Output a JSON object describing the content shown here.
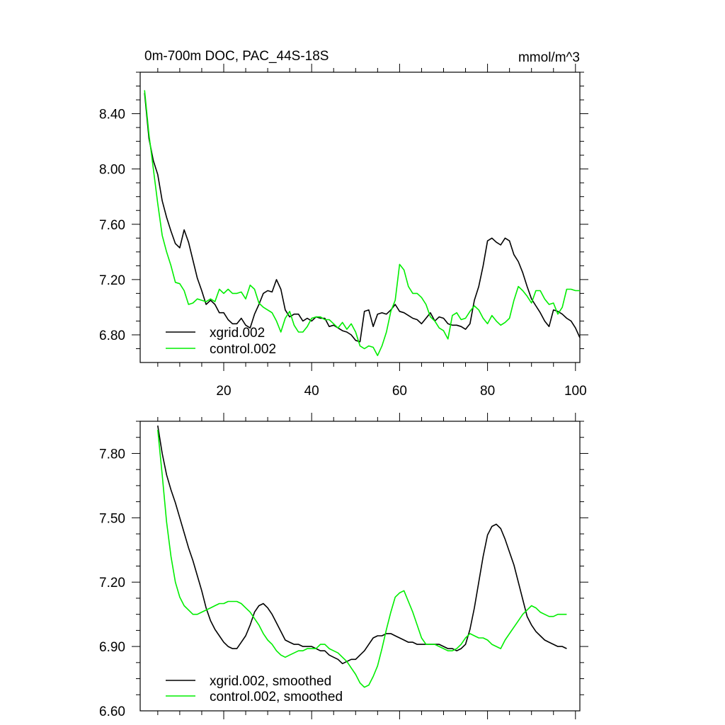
{
  "chart_data": [
    {
      "type": "line",
      "title": "0m-700m DOC, PAC_44S-18S",
      "units": "mmol/m^3",
      "xlabel": "",
      "ylabel": "",
      "xlim": [
        1,
        101
      ],
      "ylim": [
        6.6,
        8.7
      ],
      "xticks": [
        20,
        40,
        60,
        80,
        100
      ],
      "yticks": [
        6.8,
        7.2,
        7.6,
        8.0,
        8.4
      ],
      "ytick_labels": [
        "6.80",
        "7.20",
        "7.60",
        "8.00",
        "8.40"
      ],
      "legend_position": "bottom-left",
      "series": [
        {
          "name": "xgrid.002",
          "color": "#000000",
          "x": [
            2,
            3,
            4,
            5,
            6,
            7,
            8,
            9,
            10,
            11,
            12,
            13,
            14,
            15,
            16,
            17,
            18,
            19,
            20,
            21,
            22,
            23,
            24,
            25,
            26,
            27,
            28,
            29,
            30,
            31,
            32,
            33,
            34,
            35,
            36,
            37,
            38,
            39,
            40,
            41,
            42,
            43,
            44,
            45,
            46,
            47,
            48,
            49,
            50,
            51,
            52,
            53,
            54,
            55,
            56,
            57,
            58,
            59,
            60,
            61,
            62,
            63,
            64,
            65,
            66,
            67,
            68,
            69,
            70,
            71,
            72,
            73,
            74,
            75,
            76,
            77,
            78,
            79,
            80,
            81,
            82,
            83,
            84,
            85,
            86,
            87,
            88,
            89,
            90,
            91,
            92,
            93,
            94,
            95,
            96,
            97,
            98,
            99,
            100,
            101
          ],
          "values": [
            8.55,
            8.22,
            8.06,
            7.96,
            7.77,
            7.65,
            7.55,
            7.46,
            7.43,
            7.56,
            7.47,
            7.34,
            7.21,
            7.12,
            7.02,
            7.05,
            7.02,
            6.96,
            6.96,
            6.91,
            6.88,
            6.88,
            6.92,
            6.87,
            6.85,
            6.95,
            7.02,
            7.1,
            7.12,
            7.11,
            7.2,
            7.13,
            6.98,
            6.93,
            6.95,
            6.95,
            6.9,
            6.92,
            6.9,
            6.93,
            6.92,
            6.92,
            6.86,
            6.87,
            6.85,
            6.83,
            6.82,
            6.8,
            6.76,
            6.75,
            6.97,
            6.98,
            6.86,
            6.95,
            6.96,
            6.95,
            6.98,
            7.02,
            6.97,
            6.96,
            6.94,
            6.92,
            6.91,
            6.88,
            6.92,
            6.96,
            6.9,
            6.93,
            6.92,
            6.88,
            6.87,
            6.87,
            6.86,
            6.84,
            6.88,
            7.05,
            7.15,
            7.3,
            7.48,
            7.5,
            7.47,
            7.45,
            7.5,
            7.48,
            7.38,
            7.33,
            7.25,
            7.15,
            7.06,
            7.01,
            6.96,
            6.9,
            6.86,
            6.98,
            6.97,
            6.95,
            6.92,
            6.9,
            6.85,
            6.78
          ]
        },
        {
          "name": "control.002",
          "color": "#00ee00",
          "x": [
            2,
            3,
            4,
            5,
            6,
            7,
            8,
            9,
            10,
            11,
            12,
            13,
            14,
            15,
            16,
            17,
            18,
            19,
            20,
            21,
            22,
            23,
            24,
            25,
            26,
            27,
            28,
            29,
            30,
            31,
            32,
            33,
            34,
            35,
            36,
            37,
            38,
            39,
            40,
            41,
            42,
            43,
            44,
            45,
            46,
            47,
            48,
            49,
            50,
            51,
            52,
            53,
            54,
            55,
            56,
            57,
            58,
            59,
            60,
            61,
            62,
            63,
            64,
            65,
            66,
            67,
            68,
            69,
            70,
            71,
            72,
            73,
            74,
            75,
            76,
            77,
            78,
            79,
            80,
            81,
            82,
            83,
            84,
            85,
            86,
            87,
            88,
            89,
            90,
            91,
            92,
            93,
            94,
            95,
            96,
            97,
            98,
            99,
            100,
            101
          ],
          "values": [
            8.57,
            8.25,
            8.0,
            7.75,
            7.52,
            7.4,
            7.3,
            7.18,
            7.17,
            7.12,
            7.02,
            7.03,
            7.06,
            7.05,
            7.04,
            7.06,
            7.04,
            7.13,
            7.1,
            7.13,
            7.1,
            7.1,
            7.11,
            7.06,
            7.16,
            7.13,
            7.03,
            7.0,
            6.98,
            6.96,
            6.9,
            6.82,
            6.92,
            6.97,
            6.87,
            6.82,
            6.82,
            6.86,
            6.92,
            6.93,
            6.93,
            6.91,
            6.91,
            6.88,
            6.85,
            6.89,
            6.84,
            6.88,
            6.82,
            6.72,
            6.7,
            6.72,
            6.71,
            6.65,
            6.72,
            6.82,
            6.97,
            7.05,
            7.31,
            7.27,
            7.15,
            7.1,
            7.1,
            7.07,
            7.02,
            6.93,
            6.9,
            6.85,
            6.83,
            6.77,
            6.94,
            6.96,
            6.91,
            6.92,
            6.97,
            7.01,
            6.98,
            6.92,
            6.88,
            6.94,
            6.9,
            6.87,
            6.89,
            6.92,
            7.05,
            7.15,
            7.12,
            7.08,
            7.03,
            7.12,
            7.12,
            7.06,
            7.02,
            7.03,
            6.95,
            7.0,
            7.13,
            7.13,
            7.12,
            7.12
          ]
        }
      ]
    },
    {
      "type": "line",
      "title": "",
      "xlabel": "",
      "ylabel": "",
      "xlim": [
        1,
        101
      ],
      "ylim": [
        6.6,
        7.95
      ],
      "xticks": [
        20,
        40,
        60,
        80,
        100
      ],
      "yticks": [
        6.6,
        6.9,
        7.2,
        7.5,
        7.8
      ],
      "ytick_labels": [
        "6.60",
        "6.90",
        "7.20",
        "7.50",
        "7.80"
      ],
      "legend_position": "bottom-left",
      "series": [
        {
          "name": "xgrid.002, smoothed",
          "color": "#000000",
          "x": [
            5,
            6,
            7,
            8,
            9,
            10,
            11,
            12,
            13,
            14,
            15,
            16,
            17,
            18,
            19,
            20,
            21,
            22,
            23,
            24,
            25,
            26,
            27,
            28,
            29,
            30,
            31,
            32,
            33,
            34,
            35,
            36,
            37,
            38,
            39,
            40,
            41,
            42,
            43,
            44,
            45,
            46,
            47,
            48,
            49,
            50,
            51,
            52,
            53,
            54,
            55,
            56,
            57,
            58,
            59,
            60,
            61,
            62,
            63,
            64,
            65,
            66,
            67,
            68,
            69,
            70,
            71,
            72,
            73,
            74,
            75,
            76,
            77,
            78,
            79,
            80,
            81,
            82,
            83,
            84,
            85,
            86,
            87,
            88,
            89,
            90,
            91,
            92,
            93,
            94,
            95,
            96,
            97,
            98
          ],
          "values": [
            7.93,
            7.8,
            7.7,
            7.63,
            7.57,
            7.5,
            7.43,
            7.36,
            7.3,
            7.23,
            7.16,
            7.08,
            7.02,
            6.98,
            6.95,
            6.92,
            6.9,
            6.89,
            6.89,
            6.92,
            6.95,
            7.0,
            7.06,
            7.09,
            7.1,
            7.08,
            7.05,
            7.01,
            6.97,
            6.93,
            6.92,
            6.91,
            6.91,
            6.9,
            6.9,
            6.9,
            6.89,
            6.88,
            6.88,
            6.86,
            6.85,
            6.84,
            6.82,
            6.83,
            6.84,
            6.84,
            6.86,
            6.88,
            6.91,
            6.94,
            6.95,
            6.95,
            6.96,
            6.96,
            6.95,
            6.94,
            6.93,
            6.92,
            6.92,
            6.91,
            6.91,
            6.91,
            6.91,
            6.91,
            6.91,
            6.9,
            6.89,
            6.89,
            6.88,
            6.89,
            6.91,
            6.98,
            7.08,
            7.2,
            7.32,
            7.42,
            7.46,
            7.47,
            7.45,
            7.4,
            7.34,
            7.28,
            7.2,
            7.12,
            7.04,
            7.0,
            6.97,
            6.95,
            6.93,
            6.92,
            6.91,
            6.9,
            6.9,
            6.89
          ]
        },
        {
          "name": "control.002, smoothed",
          "color": "#00ee00",
          "x": [
            5,
            6,
            7,
            8,
            9,
            10,
            11,
            12,
            13,
            14,
            15,
            16,
            17,
            18,
            19,
            20,
            21,
            22,
            23,
            24,
            25,
            26,
            27,
            28,
            29,
            30,
            31,
            32,
            33,
            34,
            35,
            36,
            37,
            38,
            39,
            40,
            41,
            42,
            43,
            44,
            45,
            46,
            47,
            48,
            49,
            50,
            51,
            52,
            53,
            54,
            55,
            56,
            57,
            58,
            59,
            60,
            61,
            62,
            63,
            64,
            65,
            66,
            67,
            68,
            69,
            70,
            71,
            72,
            73,
            74,
            75,
            76,
            77,
            78,
            79,
            80,
            81,
            82,
            83,
            84,
            85,
            86,
            87,
            88,
            89,
            90,
            91,
            92,
            93,
            94,
            95,
            96,
            97,
            98
          ],
          "values": [
            7.91,
            7.7,
            7.48,
            7.32,
            7.2,
            7.13,
            7.09,
            7.07,
            7.05,
            7.05,
            7.06,
            7.07,
            7.08,
            7.09,
            7.1,
            7.1,
            7.11,
            7.11,
            7.11,
            7.1,
            7.08,
            7.06,
            7.03,
            7.0,
            6.96,
            6.93,
            6.91,
            6.88,
            6.86,
            6.85,
            6.86,
            6.87,
            6.88,
            6.88,
            6.89,
            6.89,
            6.89,
            6.91,
            6.91,
            6.89,
            6.88,
            6.87,
            6.85,
            6.83,
            6.8,
            6.77,
            6.73,
            6.71,
            6.72,
            6.76,
            6.81,
            6.89,
            6.98,
            7.06,
            7.13,
            7.15,
            7.16,
            7.11,
            7.06,
            7.0,
            6.94,
            6.91,
            6.91,
            6.91,
            6.9,
            6.89,
            6.88,
            6.88,
            6.89,
            6.91,
            6.94,
            6.96,
            6.95,
            6.94,
            6.94,
            6.93,
            6.91,
            6.9,
            6.89,
            6.93,
            6.96,
            6.99,
            7.02,
            7.05,
            7.07,
            7.09,
            7.08,
            7.06,
            7.05,
            7.04,
            7.04,
            7.05,
            7.05,
            7.05
          ]
        }
      ]
    }
  ]
}
